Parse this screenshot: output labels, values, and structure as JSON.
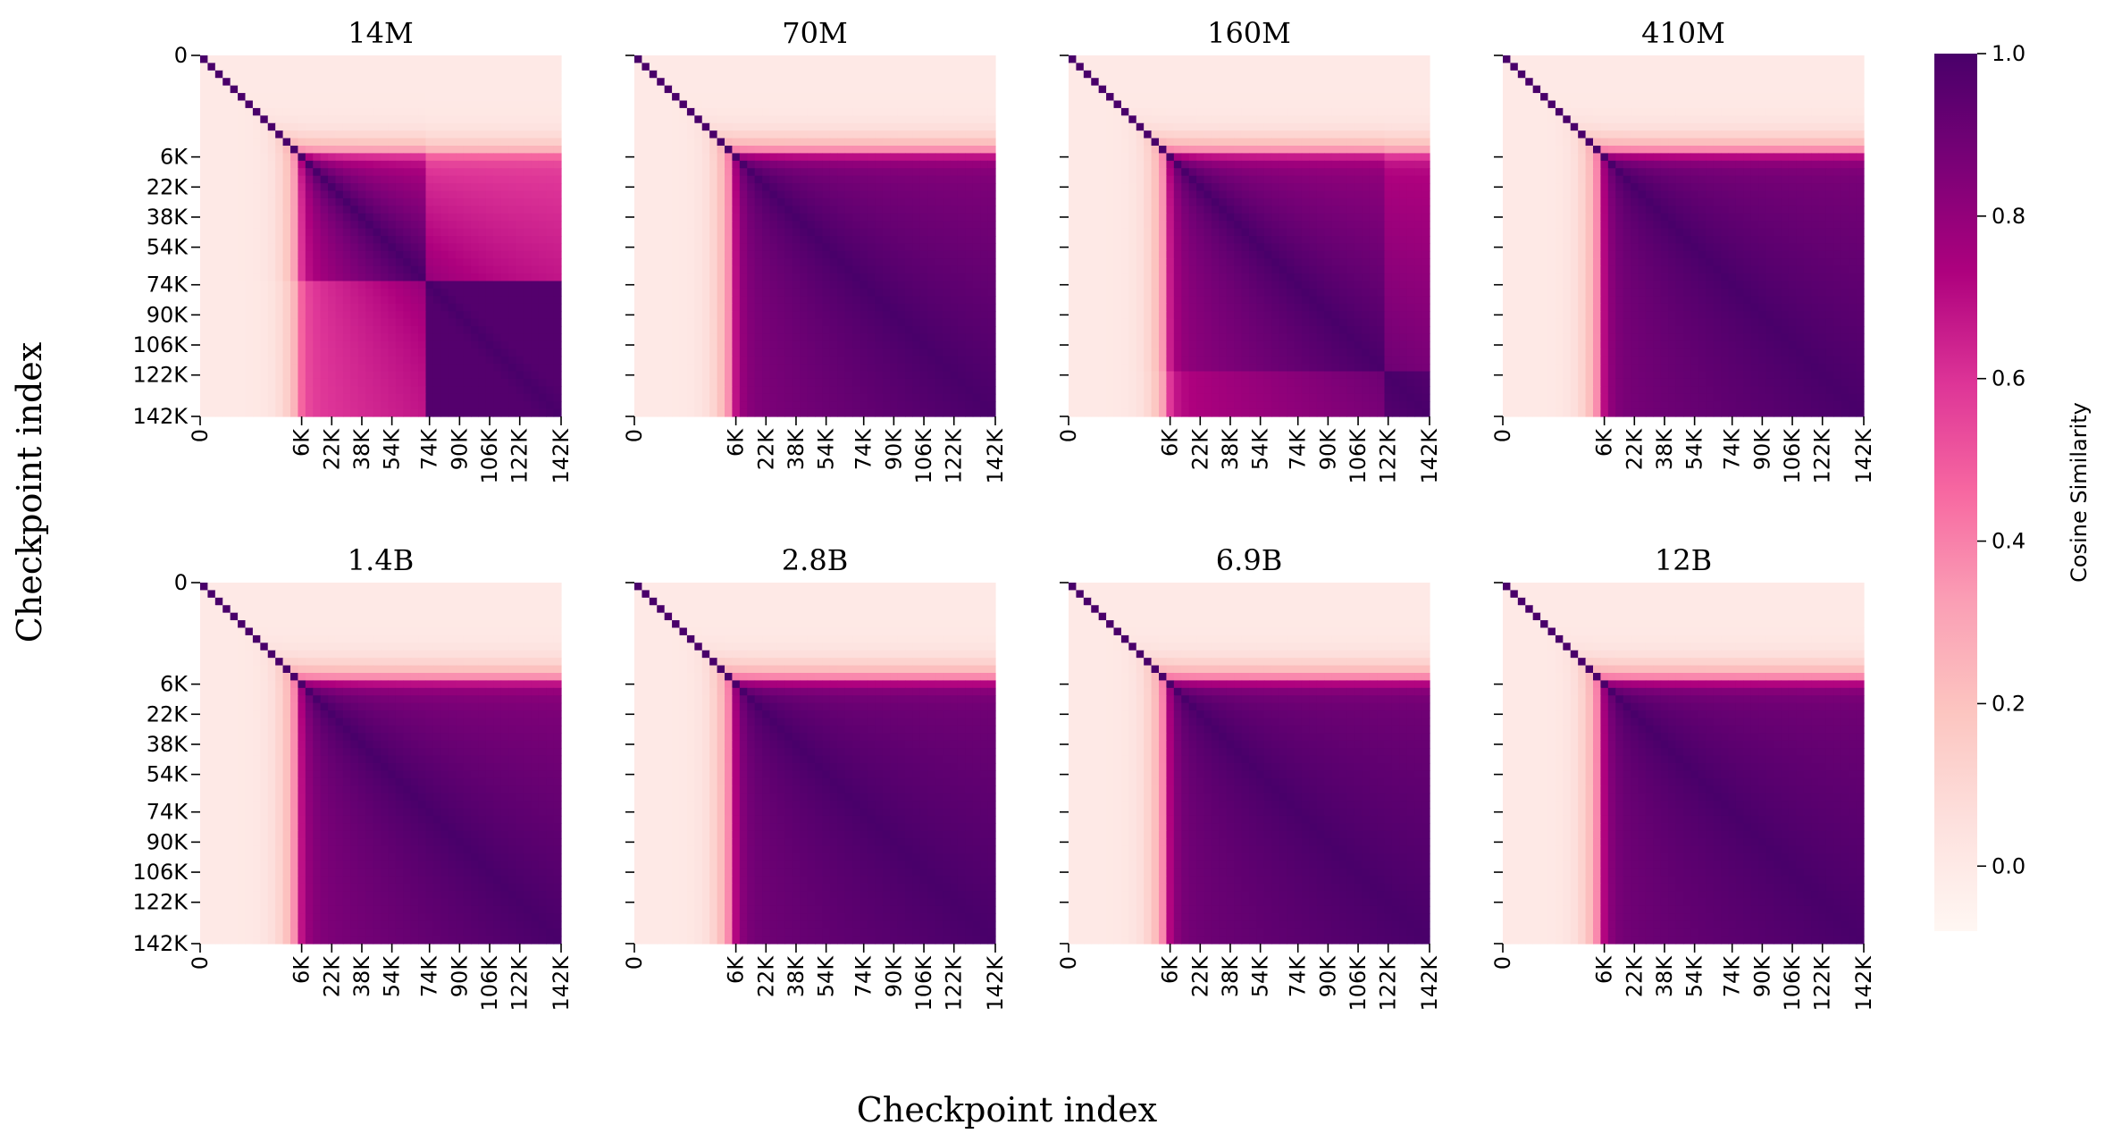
{
  "figure": {
    "xlabel": "Checkpoint index",
    "ylabel": "Checkpoint index"
  },
  "colorbar": {
    "label": "Cosine Similarity",
    "range": [
      -0.08,
      1.0
    ],
    "ticks": [
      0.0,
      0.2,
      0.4,
      0.6,
      0.8,
      1.0
    ],
    "tick_labels": [
      "0.0",
      "0.2",
      "0.4",
      "0.6",
      "0.8",
      "1.0"
    ],
    "colormap": "RdPu",
    "stops": [
      "#fff7f3",
      "#fde0dd",
      "#fcc5c0",
      "#fa9fb5",
      "#f768a1",
      "#dd3497",
      "#ae017e",
      "#7a0177",
      "#49006a"
    ]
  },
  "chart_data": [
    {
      "type": "heatmap",
      "title": "14M",
      "ticks": [
        "0",
        "6K",
        "22K",
        "38K",
        "54K",
        "74K",
        "90K",
        "106K",
        "122K",
        "142K"
      ],
      "range": [
        "0",
        "142K"
      ],
      "min_similarity": 0.0,
      "max_similarity": 1.0,
      "transition_step": 74
    },
    {
      "type": "heatmap",
      "title": "70M",
      "ticks": [
        "0",
        "6K",
        "22K",
        "38K",
        "54K",
        "74K",
        "90K",
        "106K",
        "122K",
        "142K"
      ],
      "range": [
        "0",
        "142K"
      ],
      "min_similarity": 0.0,
      "max_similarity": 1.0
    },
    {
      "type": "heatmap",
      "title": "160M",
      "ticks": [
        "0",
        "6K",
        "22K",
        "38K",
        "54K",
        "74K",
        "90K",
        "106K",
        "122K",
        "142K"
      ],
      "range": [
        "0",
        "142K"
      ],
      "min_similarity": 0.0,
      "max_similarity": 1.0,
      "transition_step": 122
    },
    {
      "type": "heatmap",
      "title": "410M",
      "ticks": [
        "0",
        "6K",
        "22K",
        "38K",
        "54K",
        "74K",
        "90K",
        "106K",
        "122K",
        "142K"
      ],
      "range": [
        "0",
        "142K"
      ],
      "min_similarity": 0.0,
      "max_similarity": 1.0
    },
    {
      "type": "heatmap",
      "title": "1.4B",
      "ticks": [
        "0",
        "6K",
        "22K",
        "38K",
        "54K",
        "74K",
        "90K",
        "106K",
        "122K",
        "142K"
      ],
      "range": [
        "0",
        "142K"
      ],
      "min_similarity": 0.0,
      "max_similarity": 1.0
    },
    {
      "type": "heatmap",
      "title": "2.8B",
      "ticks": [
        "0",
        "6K",
        "22K",
        "38K",
        "54K",
        "74K",
        "90K",
        "106K",
        "122K",
        "142K"
      ],
      "range": [
        "0",
        "142K"
      ],
      "min_similarity": 0.0,
      "max_similarity": 1.0
    },
    {
      "type": "heatmap",
      "title": "6.9B",
      "ticks": [
        "0",
        "6K",
        "22K",
        "38K",
        "54K",
        "74K",
        "90K",
        "106K",
        "122K",
        "142K"
      ],
      "range": [
        "0",
        "142K"
      ],
      "min_similarity": 0.0,
      "max_similarity": 1.0
    },
    {
      "type": "heatmap",
      "title": "12B",
      "ticks": [
        "0",
        "6K",
        "22K",
        "38K",
        "54K",
        "74K",
        "90K",
        "106K",
        "122K",
        "142K"
      ],
      "range": [
        "0",
        "142K"
      ],
      "min_similarity": 0.0,
      "max_similarity": 1.0
    }
  ]
}
